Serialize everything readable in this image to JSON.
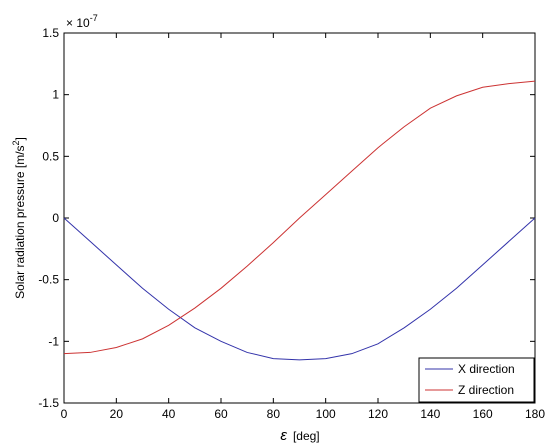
{
  "chart_data": {
    "type": "line",
    "title": "",
    "xlabel_symbol": "ε",
    "xlabel_unit": "[deg]",
    "ylabel": "Solar radiation pressure [m/s",
    "ylabel_sup": "2",
    "ylabel_end": "]",
    "exponent_base": "× 10",
    "exponent_power": "-7",
    "xlim": [
      0,
      180
    ],
    "ylim": [
      -1.5,
      1.5
    ],
    "xticks": [
      0,
      20,
      40,
      60,
      80,
      100,
      120,
      140,
      160,
      180
    ],
    "xtick_labels": [
      "0",
      "20",
      "40",
      "60",
      "80",
      "100",
      "120",
      "140",
      "160",
      "180"
    ],
    "yticks": [
      -1.5,
      -1,
      -0.5,
      0,
      0.5,
      1,
      1.5
    ],
    "ytick_labels": [
      "-1.5",
      "-1",
      "-0.5",
      "0",
      "0.5",
      "1",
      "1.5"
    ],
    "grid": false,
    "legend_position": "bottom-right",
    "x": [
      0,
      10,
      20,
      30,
      40,
      50,
      60,
      70,
      80,
      90,
      100,
      110,
      120,
      130,
      140,
      150,
      160,
      170,
      180
    ],
    "series": [
      {
        "name": "X direction",
        "color": "#3333aa",
        "values": [
          0.0,
          -0.19,
          -0.38,
          -0.57,
          -0.74,
          -0.89,
          -1.0,
          -1.09,
          -1.14,
          -1.15,
          -1.14,
          -1.1,
          -1.02,
          -0.89,
          -0.74,
          -0.57,
          -0.38,
          -0.19,
          0.0
        ]
      },
      {
        "name": "Z direction",
        "color": "#cc3333",
        "values": [
          -1.1,
          -1.09,
          -1.05,
          -0.98,
          -0.87,
          -0.73,
          -0.57,
          -0.39,
          -0.2,
          0.0,
          0.19,
          0.38,
          0.57,
          0.74,
          0.89,
          0.99,
          1.06,
          1.09,
          1.11
        ]
      }
    ]
  }
}
